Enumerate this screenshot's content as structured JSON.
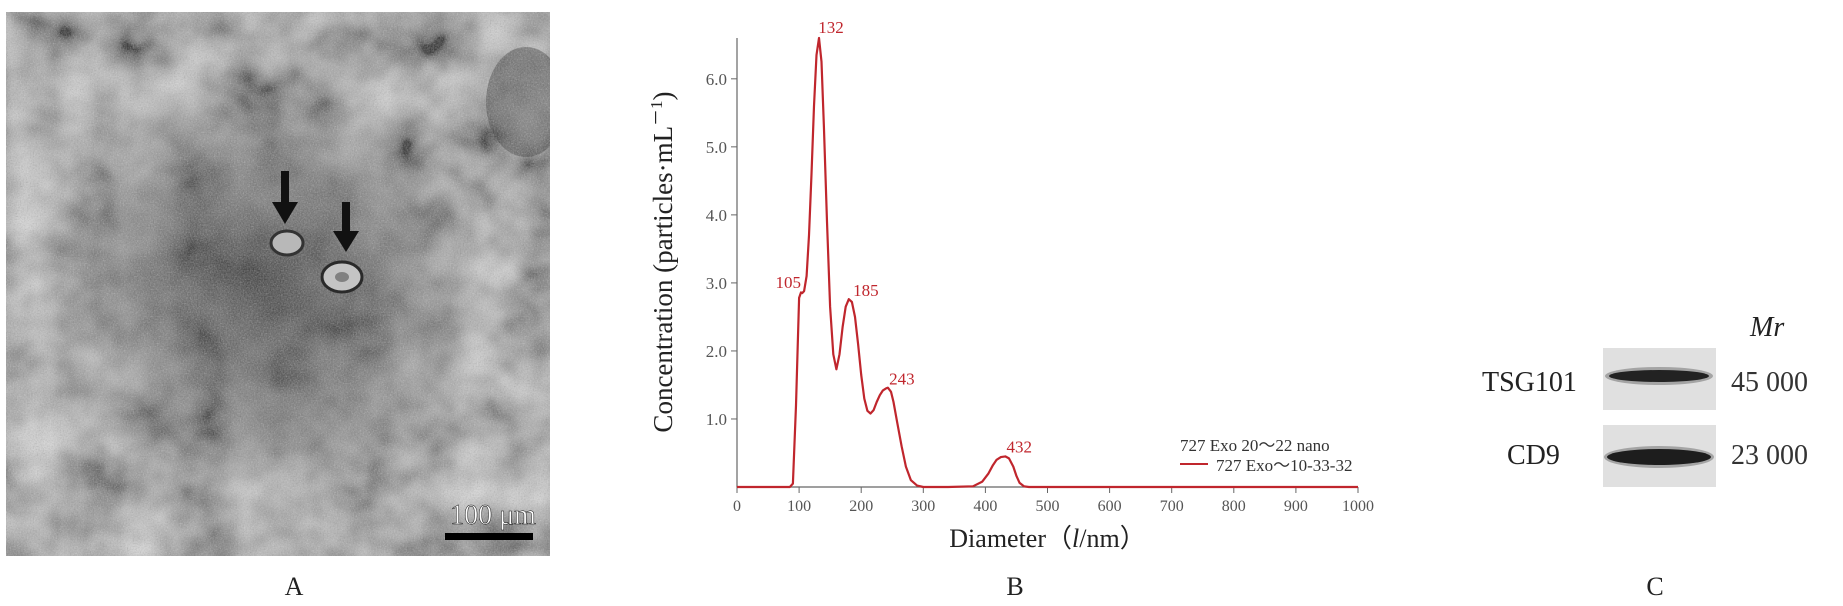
{
  "panels": {
    "a": {
      "label": "A",
      "scale_bar_text": "100 μm",
      "arrow_count": 2
    },
    "b": {
      "label": "B"
    },
    "c": {
      "label": "C"
    }
  },
  "chart_data": {
    "type": "line",
    "title": "",
    "xlabel": "Diameter（l/nm）",
    "xlabel_prefix": "Diameter（",
    "xlabel_var": "l",
    "xlabel_suffix": "/nm）",
    "ylabel": "Concentration (particles·mL⁻¹)",
    "ylabel_main": "Concentration (particles·mL",
    "ylabel_sup": "－1",
    "ylabel_close": ")",
    "xlim": [
      0,
      1000
    ],
    "ylim": [
      0,
      6.6
    ],
    "x_ticks": [
      "0",
      "100",
      "200",
      "300",
      "400",
      "500",
      "600",
      "700",
      "800",
      "900",
      "1000"
    ],
    "y_ticks": [
      "1.0",
      "2.0",
      "3.0",
      "4.0",
      "5.0",
      "6.0"
    ],
    "grid": false,
    "legend_position": "bottom-right",
    "legend": [
      "727 Exo 20～22 nano",
      "727 Exo～10-33-32"
    ],
    "series": [
      {
        "name": "727 Exo～10-33-32",
        "color": "#c0262d",
        "x": [
          0,
          85,
          90,
          95,
          100,
          103,
          105,
          108,
          112,
          116,
          120,
          124,
          128,
          132,
          136,
          140,
          145,
          150,
          155,
          160,
          165,
          170,
          175,
          180,
          185,
          190,
          195,
          200,
          205,
          210,
          215,
          220,
          225,
          230,
          235,
          240,
          243,
          248,
          252,
          258,
          265,
          272,
          280,
          290,
          300,
          340,
          380,
          395,
          405,
          412,
          418,
          425,
          432,
          438,
          445,
          450,
          455,
          462,
          470,
          500,
          1000
        ],
        "y": [
          0,
          0,
          0.05,
          1.2,
          2.78,
          2.86,
          2.85,
          2.88,
          3.1,
          3.7,
          4.6,
          5.6,
          6.35,
          6.6,
          6.25,
          5.3,
          3.9,
          2.65,
          1.95,
          1.73,
          1.95,
          2.35,
          2.65,
          2.76,
          2.72,
          2.5,
          2.1,
          1.65,
          1.3,
          1.12,
          1.08,
          1.13,
          1.25,
          1.35,
          1.42,
          1.45,
          1.46,
          1.4,
          1.25,
          0.95,
          0.6,
          0.3,
          0.1,
          0.02,
          0,
          0,
          0.01,
          0.08,
          0.2,
          0.32,
          0.4,
          0.44,
          0.45,
          0.42,
          0.3,
          0.16,
          0.06,
          0.01,
          0,
          0,
          0
        ]
      }
    ],
    "annotations": [
      {
        "text": "132",
        "x": 132,
        "y": 6.6
      },
      {
        "text": "105",
        "x": 105,
        "y": 2.85
      },
      {
        "text": "185",
        "x": 185,
        "y": 2.75
      },
      {
        "text": "243",
        "x": 243,
        "y": 1.45
      },
      {
        "text": "432",
        "x": 432,
        "y": 0.45
      }
    ]
  },
  "blot": {
    "mr_label": "Mr",
    "bands": [
      {
        "protein": "TSG101",
        "mw": "45 000"
      },
      {
        "protein": "CD9",
        "mw": "23 000"
      }
    ]
  }
}
